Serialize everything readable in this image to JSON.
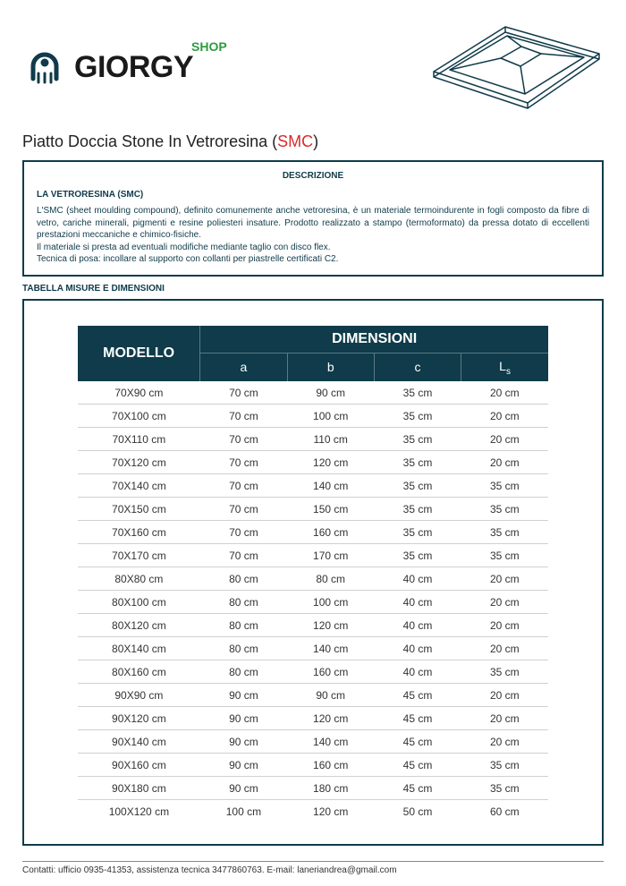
{
  "brand": {
    "logo_name": "GIORGY",
    "shop_label": "SHOP"
  },
  "product_title_prefix": "Piatto Doccia Stone In Vetroresina (",
  "product_title_smc": "SMC",
  "product_title_suffix": ")",
  "description": {
    "heading": "DESCRIZIONE",
    "subheading": "LA VETRORESINA (SMC)",
    "body": "L'SMC (sheet moulding compound), definito comunemente anche vetroresina, è un materiale termoindurente in fogli composto da fibre di vetro, cariche minerali, pigmenti e resine poliesteri insature. Prodotto realizzato a stampo (termoformato) da pressa dotato di eccellenti prestazioni meccaniche e chimico-fisiche.\nIl materiale si presta ad eventuali modifiche mediante taglio con disco flex.\nTecnica di posa: incollare al supporto con collanti per piastrelle certificati C2."
  },
  "table_section_label": "TABELLA MISURE E DIMENSIONI",
  "table": {
    "header_model": "MODELLO",
    "header_dimensions": "DIMENSIONI",
    "columns": [
      "a",
      "b",
      "c",
      "Ls"
    ],
    "col_widths_pct": [
      26,
      18.5,
      18.5,
      18.5,
      18.5
    ],
    "rows": [
      [
        "70X90 cm",
        "70 cm",
        "90 cm",
        "35 cm",
        "20 cm"
      ],
      [
        "70X100 cm",
        "70 cm",
        "100 cm",
        "35 cm",
        "20 cm"
      ],
      [
        "70X110 cm",
        "70 cm",
        "110 cm",
        "35 cm",
        "20 cm"
      ],
      [
        "70X120 cm",
        "70 cm",
        "120 cm",
        "35 cm",
        "20 cm"
      ],
      [
        "70X140 cm",
        "70 cm",
        "140 cm",
        "35 cm",
        "35 cm"
      ],
      [
        "70X150 cm",
        "70 cm",
        "150 cm",
        "35 cm",
        "35 cm"
      ],
      [
        "70X160 cm",
        "70 cm",
        "160 cm",
        "35 cm",
        "35 cm"
      ],
      [
        "70X170 cm",
        "70 cm",
        "170 cm",
        "35 cm",
        "35 cm"
      ],
      [
        "80X80 cm",
        "80 cm",
        "80 cm",
        "40 cm",
        "20 cm"
      ],
      [
        "80X100 cm",
        "80 cm",
        "100 cm",
        "40 cm",
        "20 cm"
      ],
      [
        "80X120 cm",
        "80 cm",
        "120 cm",
        "40 cm",
        "20 cm"
      ],
      [
        "80X140 cm",
        "80 cm",
        "140 cm",
        "40 cm",
        "20 cm"
      ],
      [
        "80X160 cm",
        "80 cm",
        "160 cm",
        "40 cm",
        "35 cm"
      ],
      [
        "90X90 cm",
        "90 cm",
        "90 cm",
        "45 cm",
        "20 cm"
      ],
      [
        "90X120 cm",
        "90 cm",
        "120 cm",
        "45 cm",
        "20 cm"
      ],
      [
        "90X140 cm",
        "90 cm",
        "140 cm",
        "45 cm",
        "20 cm"
      ],
      [
        "90X160 cm",
        "90 cm",
        "160 cm",
        "45 cm",
        "35 cm"
      ],
      [
        "90X180 cm",
        "90 cm",
        "180 cm",
        "45 cm",
        "35 cm"
      ],
      [
        "100X120 cm",
        "100 cm",
        "120 cm",
        "50 cm",
        "60 cm"
      ]
    ]
  },
  "footer": "Contatti: ufficio 0935-41353, assistenza tecnica 3477860763.  E-mail: laneriandrea@gmail.com",
  "colors": {
    "frame": "#0f3b4a",
    "header_bg": "#0f3b4a",
    "accent_green": "#2e9b3f",
    "accent_red": "#d62c2c",
    "row_border": "#d0d0d0"
  }
}
